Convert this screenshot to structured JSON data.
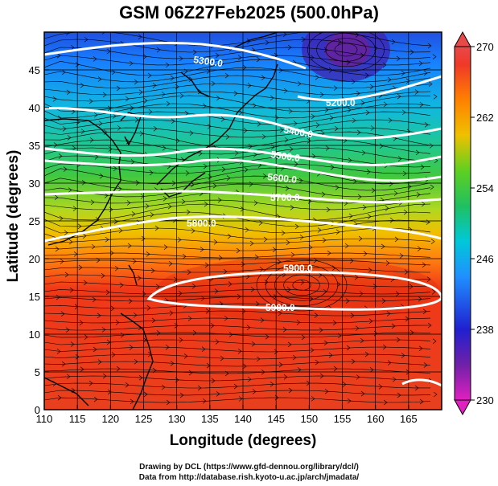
{
  "title": "GSM 06Z27Feb2025 (500.0hPa)",
  "xaxis": {
    "label": "Longitude (degrees)",
    "min": 110,
    "max": 170,
    "ticks": [
      "110",
      "115",
      "120",
      "125",
      "130",
      "135",
      "140",
      "145",
      "150",
      "155",
      "160",
      "165"
    ]
  },
  "yaxis": {
    "label": "Latitude  (degrees)",
    "min": 0,
    "max": 50,
    "ticks": [
      "0",
      "5",
      "10",
      "15",
      "20",
      "25",
      "30",
      "35",
      "40",
      "45"
    ]
  },
  "colorbar": {
    "variable_range": [
      230,
      270
    ],
    "tick_labels": [
      "270",
      "262",
      "254",
      "246",
      "238",
      "230"
    ],
    "colors": [
      "#d020c0",
      "#6a1fa6",
      "#2020d0",
      "#2080ff",
      "#00c8e0",
      "#20c090",
      "#30c030",
      "#a0d820",
      "#f0c000",
      "#ff8000",
      "#f03000",
      "#e83a3a"
    ]
  },
  "contours": [
    {
      "label": "5300.0"
    },
    {
      "label": "5200.0"
    },
    {
      "label": "5400.0"
    },
    {
      "label": "5500.0"
    },
    {
      "label": "5600.0"
    },
    {
      "label": "5700.0"
    },
    {
      "label": "5800.0"
    },
    {
      "label": "5900.0"
    },
    {
      "label": "5900.0"
    }
  ],
  "credits": {
    "line1": "Drawing by DCL (https://www.gfd-dennou.org/library/dcl/)",
    "line2": "Data from http://database.rish.kyoto-u.ac.jp/arch/jmadata/"
  },
  "chart_data": {
    "type": "heatmap",
    "title": "GSM 06Z27Feb2025 (500.0hPa)",
    "xlabel": "Longitude (degrees)",
    "ylabel": "Latitude  (degrees)",
    "xlim": [
      110,
      170
    ],
    "ylim": [
      0,
      50
    ],
    "color_scale_range": [
      230,
      270
    ],
    "color_scale_ticks": [
      230,
      238,
      246,
      254,
      262,
      270
    ],
    "contour_levels": [
      5200,
      5300,
      5400,
      5500,
      5600,
      5700,
      5800,
      5900
    ],
    "features": [
      "streamlines",
      "contours",
      "coastlines",
      "grid"
    ]
  }
}
